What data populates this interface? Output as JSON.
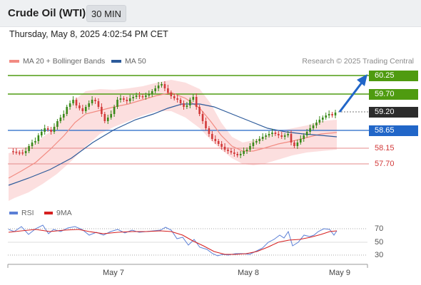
{
  "header": {
    "instrument": "Crude Oil (WTI)",
    "timeframe": "30 MIN"
  },
  "timestamp": "Thursday, May 8, 2025 4:02:54 PM CET",
  "legend": {
    "items": [
      {
        "label": "MA 20 + Bollinger Bands",
        "color": "#f28b82"
      },
      {
        "label": "MA 50",
        "color": "#2c5a9a"
      }
    ],
    "credit": "Research © 2025 Trading Central"
  },
  "levels": [
    {
      "label": "60.25",
      "style": "green"
    },
    {
      "label": "59.70",
      "style": "green"
    },
    {
      "label": "59.20",
      "style": "dark"
    },
    {
      "label": "58.65",
      "style": "blue"
    },
    {
      "label": "58.15",
      "style": "red"
    },
    {
      "label": "57.70",
      "style": "red"
    }
  ],
  "rsi": {
    "legend": [
      {
        "label": "RSI",
        "color": "#5b7fd6"
      },
      {
        "label": "9MA",
        "color": "#d62020"
      }
    ],
    "ticks": [
      "70",
      "50",
      "30"
    ]
  },
  "xaxis": {
    "labels": [
      "May 7",
      "May 8",
      "May 9"
    ]
  },
  "colors": {
    "up": "#3a8a1a",
    "down": "#d23a3a",
    "band": "#fbd7d7",
    "ma20": "#f28b82",
    "ma50": "#2c5a9a",
    "arrow": "#2166c8"
  }
}
